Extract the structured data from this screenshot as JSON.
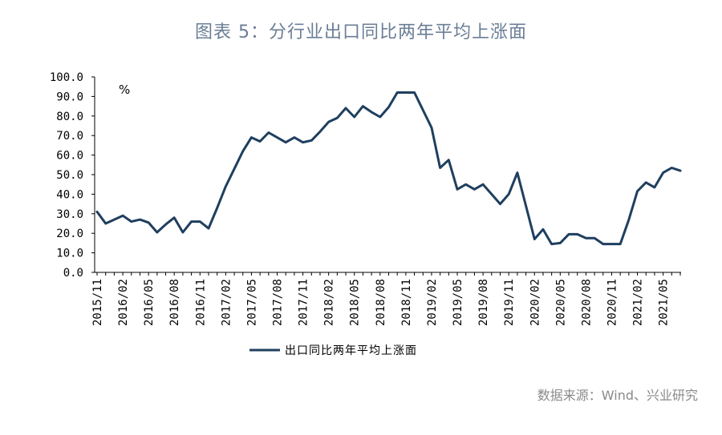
{
  "figure": {
    "title": "图表 5：分行业出口同比两年平均上涨面",
    "source": "数据来源：Wind、兴业研究"
  },
  "colors": {
    "line": "#1f3f5f",
    "axis": "#000000"
  },
  "chart_data": {
    "type": "line",
    "unit": "%",
    "ylim": [
      0,
      100
    ],
    "yticks": [
      "0.0",
      "10.0",
      "20.0",
      "30.0",
      "40.0",
      "50.0",
      "60.0",
      "70.0",
      "80.0",
      "90.0",
      "100.0"
    ],
    "xtick_labels": [
      "2015/11",
      "2016/02",
      "2016/05",
      "2016/08",
      "2016/11",
      "2017/02",
      "2017/05",
      "2017/08",
      "2017/11",
      "2018/02",
      "2018/05",
      "2018/08",
      "2018/11",
      "2019/02",
      "2019/05",
      "2019/08",
      "2019/11",
      "2020/02",
      "2020/05",
      "2020/08",
      "2020/11",
      "2021/02",
      "2021/05"
    ],
    "x": [
      "2015/11",
      "2015/12",
      "2016/01",
      "2016/02",
      "2016/03",
      "2016/04",
      "2016/05",
      "2016/06",
      "2016/07",
      "2016/08",
      "2016/09",
      "2016/10",
      "2016/11",
      "2016/12",
      "2017/01",
      "2017/02",
      "2017/03",
      "2017/04",
      "2017/05",
      "2017/06",
      "2017/07",
      "2017/08",
      "2017/09",
      "2017/10",
      "2017/11",
      "2017/12",
      "2018/01",
      "2018/02",
      "2018/03",
      "2018/04",
      "2018/05",
      "2018/06",
      "2018/07",
      "2018/08",
      "2018/09",
      "2018/10",
      "2018/11",
      "2018/12",
      "2019/01",
      "2019/02",
      "2019/03",
      "2019/04",
      "2019/05",
      "2019/06",
      "2019/07",
      "2019/08",
      "2019/09",
      "2019/10",
      "2019/11",
      "2019/12",
      "2020/01",
      "2020/02",
      "2020/03",
      "2020/04",
      "2020/05",
      "2020/06",
      "2020/07",
      "2020/08",
      "2020/09",
      "2020/10",
      "2020/11",
      "2020/12",
      "2021/01",
      "2021/02",
      "2021/03",
      "2021/04",
      "2021/05",
      "2021/06",
      "2021/07"
    ],
    "series": [
      {
        "name": "出口同比两年平均上涨面",
        "values": [
          31,
          25,
          27,
          29,
          26,
          27,
          25.5,
          20.5,
          24.5,
          28,
          20.5,
          26,
          26,
          22.5,
          33,
          44,
          53,
          62,
          69,
          67,
          71.5,
          69,
          66.5,
          69,
          66.5,
          67.5,
          72,
          77,
          79,
          84,
          79.5,
          85,
          82,
          79.5,
          84.5,
          92,
          92,
          92,
          83,
          74,
          53.5,
          57.5,
          42.5,
          45,
          42.5,
          45,
          40,
          35,
          40,
          51,
          34,
          17,
          22,
          14.5,
          15,
          19.5,
          19.5,
          17.5,
          17.5,
          14.5,
          14.5,
          14.5,
          27,
          41.5,
          46,
          43.5,
          51,
          53.5,
          52
        ]
      }
    ],
    "legend": {
      "position": "bottom-left",
      "label": "出口同比两年平均上涨面"
    },
    "grid": false
  }
}
